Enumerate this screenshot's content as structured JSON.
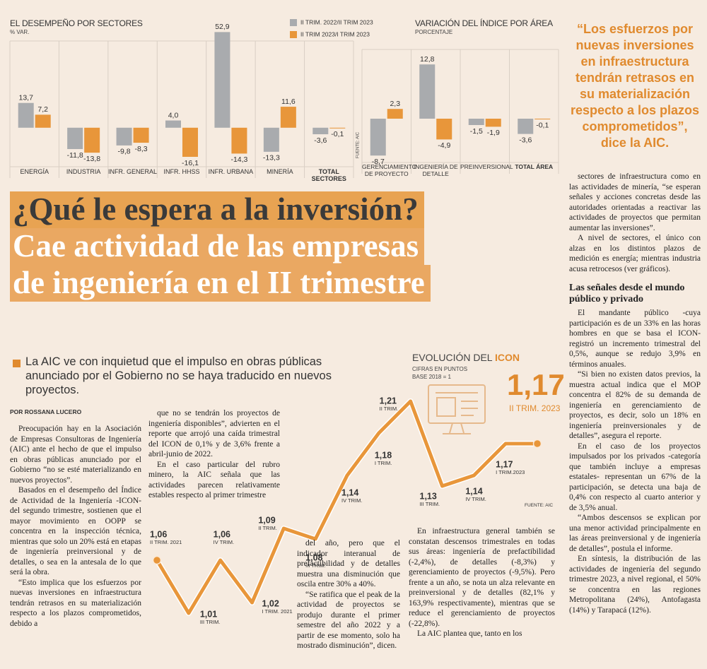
{
  "chart_data": [
    {
      "type": "bar",
      "title": "EL DESEMPEÑO POR SECTORES",
      "subtitle": "% VAR.",
      "categories": [
        "ENERGÍA",
        "INDUSTRIA",
        "INFR. GENERAL",
        "INFR. HHSS",
        "INFR. URBANA",
        "MINERÍA",
        "TOTAL SECTORES"
      ],
      "series": [
        {
          "name": "II TRIM. 2022/II TRIM 2023",
          "color": "#a9abae",
          "values": [
            13.7,
            -11.8,
            -9.8,
            4.0,
            52.9,
            -13.3,
            -3.6
          ],
          "value_labels": [
            "13,7",
            "-11,8",
            "-9,8",
            "4,0",
            "52,9",
            "-13,3",
            "-3,6"
          ]
        },
        {
          "name": "II TRIM 2023/I TRIM 2023",
          "color": "#e8963a",
          "values": [
            7.2,
            -13.8,
            -8.3,
            -16.1,
            -14.3,
            11.6,
            -0.1
          ],
          "value_labels": [
            "7,2",
            "-13,8",
            "-8,3",
            "-16,1",
            "-14,3",
            "11,6",
            "-0,1"
          ]
        }
      ],
      "ylim": [
        -20,
        55
      ]
    },
    {
      "type": "bar",
      "title": "VARIACIÓN DEL ÍNDICE POR ÁREA",
      "subtitle": "PORCENTAJE",
      "source": "FUENTE: AIC",
      "categories": [
        "GERENCIAMIENTO DE PROYECTO",
        "INGENIERÍA DE DETALLE",
        "PREINVERSIONAL",
        "TOTAL ÁREA"
      ],
      "series": [
        {
          "color": "#a9abae",
          "values": [
            -8.7,
            12.8,
            -1.5,
            -3.6
          ],
          "value_labels": [
            "-8,7",
            "12,8",
            "-1,5",
            "-3,6"
          ]
        },
        {
          "color": "#e8963a",
          "values": [
            2.3,
            -4.9,
            -1.9,
            -0.1
          ],
          "value_labels": [
            "2,3",
            "-4,9",
            "-1,9",
            "-0,1"
          ]
        }
      ],
      "ylim": [
        -10,
        15
      ]
    },
    {
      "type": "line",
      "title": "EVOLUCIÓN DEL",
      "title_highlight": "ICON",
      "subtitle": "CIFRAS EN PUNTOS",
      "note": "BASE 2018 = 1",
      "source": "FUENTE: AIC",
      "categories": [
        "II TRIM. 2021",
        "III TRIM.",
        "IV TRIM.",
        "I TRIM. 2021",
        "II TRIM.",
        "III TRIM.",
        "IV TRIM.",
        "I TRIM.",
        "II TRIM.",
        "III TRIM.",
        "IV TRIM.",
        "I TRIM.2023",
        "II TRIM. 2023"
      ],
      "series": [
        {
          "color": "#e8963a",
          "values": [
            1.06,
            1.01,
            1.06,
            1.02,
            1.09,
            1.08,
            1.14,
            1.18,
            1.21,
            1.13,
            1.14,
            1.17,
            1.17
          ],
          "value_labels": [
            "1,06",
            "1,01",
            "1,06",
            "1,02",
            "1,09",
            "1,08",
            "1,14",
            "1,18",
            "1,21",
            "1,13",
            "1,14",
            "1,17",
            "1,17"
          ]
        }
      ],
      "ylim": [
        1.0,
        1.22
      ]
    }
  ],
  "quote": "“Los esfuerzos por nuevas inversiones en infraestructura tendrán retrasos en su materialización respecto a los plazos comprometidos”, dice la AIC.",
  "headline": {
    "kicker": "¿Qué le espera a la inversión?",
    "lines": [
      "Cae actividad de las empresas",
      "de ingeniería en el II trimestre"
    ]
  },
  "deck": "La AIC ve con inquietud que el impulso en obras públicas anunciado por el Gobierno no se haya traducido en nuevos proyectos.",
  "byline": "POR ROSSANA LUCERO",
  "body": {
    "col1": [
      "Preocupación hay en la Asociación de Empresas Consultoras de Ingeniería (AIC) ante el hecho de que el impulso en obras públicas anunciado por el Gobierno “no se esté materializando en nuevos proyectos”.",
      "Basados en el desempeño del Índice de Actividad de la Ingeniería -ICON- del segundo trimestre, sostienen que el mayor movimiento en OOPP se concentra en la inspección técnica, mientras que solo un 20% está en etapas de ingeniería preinversional y de detalles, o sea en la antesala de lo que será la obra.",
      "“Esto implica que los esfuerzos por nuevas inversiones en infraestructura tendrán retrasos en su materialización respecto a los plazos comprometidos, debido a"
    ],
    "col2": [
      "que no se tendrán los proyectos de ingeniería disponibles”, advierten en el reporte que arrojó una caída trimestral del ICON de 0,1% y de 3,6% frente a abril-junio de 2022.",
      "En el caso particular del rubro minero, la AIC señala que las actividades parecen relativamente estables respecto al primer trimestre"
    ],
    "col2b": [
      "del año, pero que el indicador interanual de prefactibilidad y de detalles muestra una disminución que oscila entre 30% a 40%.",
      "“Se ratifica que el peak de la actividad de proyectos se produjo durante el primer semestre del año 2022 y a partir de ese momento, solo ha mostrado disminución”, dicen."
    ],
    "col3": [
      "En infraestructura general también se constatan descensos trimestrales en todas sus áreas: ingeniería de prefactibilidad (-2,4%), de detalles (-8,3%) y gerenciamiento de proyectos (-9,5%). Pero frente a un año, se nota un alza relevante en preinversional y de detalles (82,1% y 163,9% respectivamente), mientras que se reduce el gerenciamiento de proyectos (-22,8%).",
      "La AIC plantea que, tanto en los"
    ],
    "right_top": [
      "sectores de infraestructura como en las actividades de minería, “se esperan señales y acciones concretas desde las autoridades orientadas a reactivar las actividades de proyectos que permitan aumentar las inversiones”.",
      "A nivel de sectores, el único con alzas en los distintos plazos de medición es energía; mientras industria acusa retrocesos (ver gráficos)."
    ],
    "subhead": "Las señales desde el mundo público y privado",
    "right_bottom": [
      "El mandante público -cuya participación es de un 33% en las horas hombres en que se basa el ICON- registró un incremento trimestral del 0,5%, aunque se redujo 3,9% en términos anuales.",
      "“Si bien no existen datos previos, la muestra actual indica que el MOP concentra el 82% de su demanda de ingeniería en gerenciamiento de proyectos, es decir, solo un 18% en ingeniería preinversionales y de detalles”, asegura el reporte.",
      "En el caso de los proyectos impulsados por los privados -categoría que también incluye a empresas estatales- representan un 67% de la participación, se detecta una baja de 0,4% con respecto al cuarto anterior y de 3,5% anual.",
      "“Ambos descensos se explican por una menor actividad principalmente en las áreas preinversional y de ingeniería de detalles”, postula el informe.",
      "En síntesis, la distribución de las actividades de ingeniería del segundo trimestre 2023, a nivel regional, el 50% se concentra en las regiones Metropolitana (24%), Antofagasta (14%) y Tarapacá (12%)."
    ]
  }
}
